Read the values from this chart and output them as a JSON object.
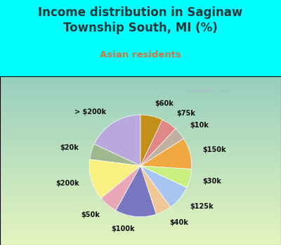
{
  "title": "Income distribution in Saginaw\nTownship South, MI (%)",
  "subtitle": "Asian residents",
  "title_color": "#1a3a3a",
  "subtitle_color": "#cc7744",
  "fig_bg": "#00ffff",
  "chart_bg_top": "#e8f8f0",
  "chart_bg_bottom": "#c8f0e0",
  "watermark": "City-Data.com",
  "labels": [
    "> $200k",
    "$20k",
    "$200k",
    "$50k",
    "$100k",
    "$40k",
    "$125k",
    "$30k",
    "$150k",
    "$10k",
    "$75k",
    "$60k"
  ],
  "values": [
    18,
    5,
    13,
    6,
    13,
    5,
    8,
    6,
    10,
    4,
    5,
    7
  ],
  "colors": [
    "#b8a8dc",
    "#a0b890",
    "#f8f080",
    "#e8a8b8",
    "#7878c0",
    "#f0c898",
    "#a8c4f0",
    "#c8f080",
    "#f0a840",
    "#c0b0a0",
    "#e08888",
    "#c09018"
  ],
  "startangle": 90
}
